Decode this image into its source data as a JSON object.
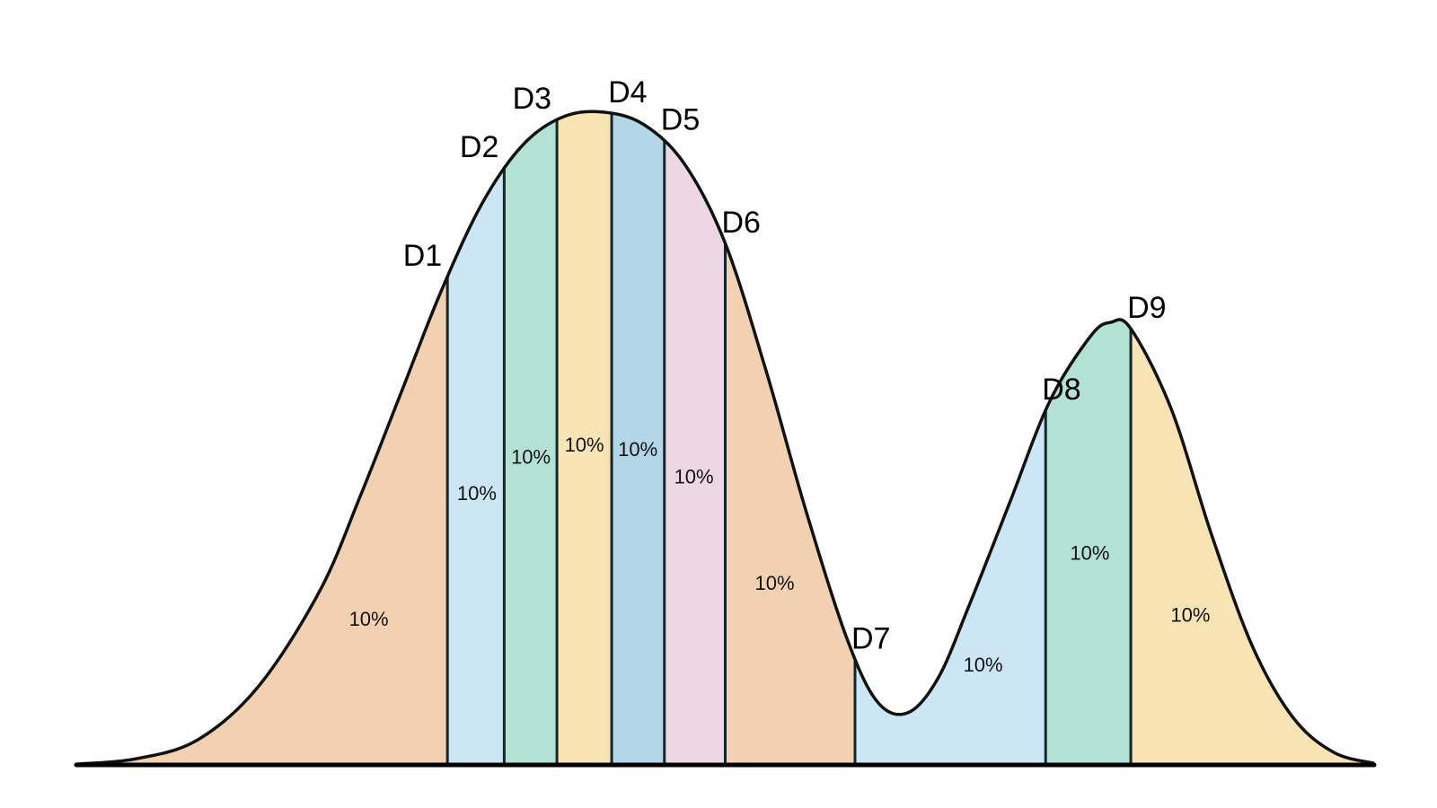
{
  "chart_data": {
    "type": "area",
    "title": "",
    "xlabel": "",
    "ylabel": "",
    "xlim": [
      -3.2,
      3.2
    ],
    "ylim": [
      0,
      0.43
    ],
    "curve": [
      {
        "x": -3.2,
        "y": 0.0005
      },
      {
        "x": -2.9,
        "y": 0.004
      },
      {
        "x": -2.6,
        "y": 0.016
      },
      {
        "x": -2.3,
        "y": 0.05
      },
      {
        "x": -2.0,
        "y": 0.11
      },
      {
        "x": -1.8,
        "y": 0.17
      },
      {
        "x": -1.6,
        "y": 0.235
      },
      {
        "x": -1.4,
        "y": 0.3
      },
      {
        "x": -1.2,
        "y": 0.355
      },
      {
        "x": -1.0,
        "y": 0.392
      },
      {
        "x": -0.8,
        "y": 0.41
      },
      {
        "x": -0.6,
        "y": 0.413
      },
      {
        "x": -0.4,
        "y": 0.405
      },
      {
        "x": -0.2,
        "y": 0.38
      },
      {
        "x": 0.0,
        "y": 0.33
      },
      {
        "x": 0.2,
        "y": 0.25
      },
      {
        "x": 0.4,
        "y": 0.16
      },
      {
        "x": 0.6,
        "y": 0.08
      },
      {
        "x": 0.75,
        "y": 0.04
      },
      {
        "x": 0.9,
        "y": 0.033
      },
      {
        "x": 1.05,
        "y": 0.055
      },
      {
        "x": 1.2,
        "y": 0.1
      },
      {
        "x": 1.4,
        "y": 0.165
      },
      {
        "x": 1.6,
        "y": 0.23
      },
      {
        "x": 1.8,
        "y": 0.271
      },
      {
        "x": 1.9,
        "y": 0.28
      },
      {
        "x": 2.0,
        "y": 0.276
      },
      {
        "x": 2.2,
        "y": 0.225
      },
      {
        "x": 2.4,
        "y": 0.145
      },
      {
        "x": 2.6,
        "y": 0.075
      },
      {
        "x": 2.8,
        "y": 0.03
      },
      {
        "x": 3.0,
        "y": 0.008
      },
      {
        "x": 3.2,
        "y": 0.001
      }
    ],
    "deciles": [
      {
        "label": "D1",
        "x": -1.37
      },
      {
        "label": "D2",
        "x": -1.09
      },
      {
        "label": "D3",
        "x": -0.83
      },
      {
        "label": "D4",
        "x": -0.56
      },
      {
        "label": "D5",
        "x": -0.3
      },
      {
        "label": "D6",
        "x": 0.0
      },
      {
        "label": "D7",
        "x": 0.64
      },
      {
        "label": "D8",
        "x": 1.58
      },
      {
        "label": "D9",
        "x": 2.0
      }
    ],
    "segments": [
      {
        "label": "10%",
        "color": "#f2d1b3"
      },
      {
        "label": "10%",
        "color": "#cce6f6"
      },
      {
        "label": "10%",
        "color": "#b3e2d5"
      },
      {
        "label": "10%",
        "color": "#f7e3b3"
      },
      {
        "label": "10%",
        "color": "#b3d6e8"
      },
      {
        "label": "10%",
        "color": "#eed7e4"
      },
      {
        "label": "10%",
        "color": "#f2d1b3"
      },
      {
        "label": "10%",
        "color": "#cce6f6"
      },
      {
        "label": "10%",
        "color": "#b3e2d5"
      },
      {
        "label": "10%",
        "color": "#f7e3b3"
      }
    ]
  }
}
